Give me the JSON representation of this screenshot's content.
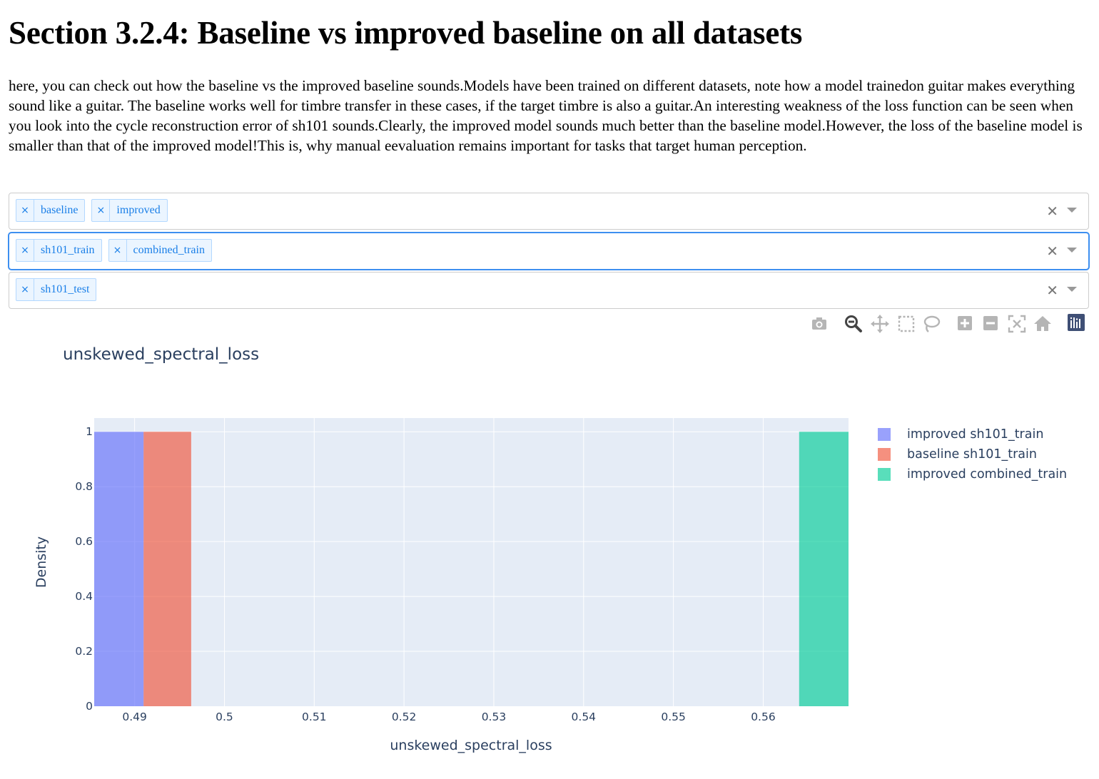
{
  "page": {
    "heading": "Section 3.2.4: Baseline vs improved baseline on all datasets",
    "intro": "here, you can check out how the baseline vs the improved baseline sounds.Models have been trained on different datasets, note how a model trainedon guitar makes everything sound like a guitar. The baseline works well for timbre transfer in these cases, if the target timbre is also a guitar.An interesting weakness of the loss function can be seen when you look into the cycle reconstruction error of sh101 sounds.Clearly, the improved model sounds much better than the baseline model.However, the loss of the baseline model is smaller than that of the improved model!This is, why manual eevaluation remains important for tasks that target human perception."
  },
  "selectors": [
    {
      "chips": [
        "baseline",
        "improved"
      ]
    },
    {
      "chips": [
        "sh101_train",
        "combined_train"
      ]
    },
    {
      "chips": [
        "sh101_test"
      ]
    }
  ],
  "modebar": {
    "icons": [
      "camera-icon",
      "zoom-icon",
      "pan-icon",
      "box-select-icon",
      "lasso-select-icon",
      "zoom-in-icon",
      "zoom-out-icon",
      "autoscale-icon",
      "reset-axes-icon",
      "plotly-logo-icon"
    ]
  },
  "chart_data": {
    "type": "bar",
    "title": "unskewed_spectral_loss",
    "xlabel": "unskewed_spectral_loss",
    "ylabel": "Density",
    "xlim": [
      0.4855,
      0.5695
    ],
    "ylim": [
      0,
      1.05
    ],
    "x_ticks": [
      0.49,
      0.5,
      0.51,
      0.52,
      0.53,
      0.54,
      0.55,
      0.56
    ],
    "y_ticks": [
      0,
      0.2,
      0.4,
      0.6,
      0.8,
      1
    ],
    "grid": true,
    "legend_position": "right",
    "series": [
      {
        "name": "improved sh101_train",
        "color": "#636efa",
        "bin_start": 0.4855,
        "bin_end": 0.491,
        "value": 1
      },
      {
        "name": "baseline sh101_train",
        "color": "#ef553b",
        "bin_start": 0.491,
        "bin_end": 0.4963,
        "value": 1
      },
      {
        "name": "improved combined_train",
        "color": "#00cc96",
        "bin_start": 0.564,
        "bin_end": 0.5695,
        "value": 1
      }
    ]
  }
}
